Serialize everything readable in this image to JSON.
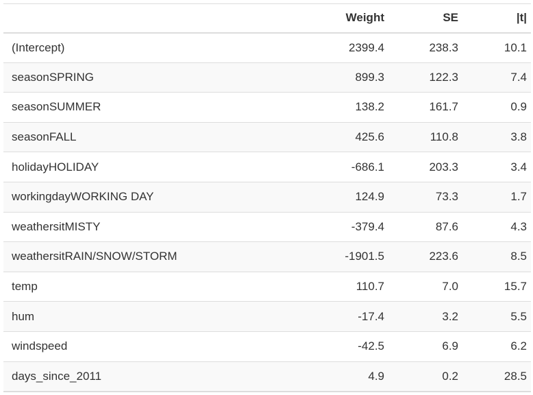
{
  "table": {
    "headers": [
      "",
      "Weight",
      "SE",
      "|t|"
    ],
    "rows": [
      {
        "term": "(Intercept)",
        "weight": "2399.4",
        "se": "238.3",
        "t": "10.1"
      },
      {
        "term": "seasonSPRING",
        "weight": "899.3",
        "se": "122.3",
        "t": "7.4"
      },
      {
        "term": "seasonSUMMER",
        "weight": "138.2",
        "se": "161.7",
        "t": "0.9"
      },
      {
        "term": "seasonFALL",
        "weight": "425.6",
        "se": "110.8",
        "t": "3.8"
      },
      {
        "term": "holidayHOLIDAY",
        "weight": "-686.1",
        "se": "203.3",
        "t": "3.4"
      },
      {
        "term": "workingdayWORKING DAY",
        "weight": "124.9",
        "se": "73.3",
        "t": "1.7"
      },
      {
        "term": "weathersitMISTY",
        "weight": "-379.4",
        "se": "87.6",
        "t": "4.3"
      },
      {
        "term": "weathersitRAIN/SNOW/STORM",
        "weight": "-1901.5",
        "se": "223.6",
        "t": "8.5"
      },
      {
        "term": "temp",
        "weight": "110.7",
        "se": "7.0",
        "t": "15.7"
      },
      {
        "term": "hum",
        "weight": "-17.4",
        "se": "3.2",
        "t": "5.5"
      },
      {
        "term": "windspeed",
        "weight": "-42.5",
        "se": "6.9",
        "t": "6.2"
      },
      {
        "term": "days_since_2011",
        "weight": "4.9",
        "se": "0.2",
        "t": "28.5"
      }
    ]
  }
}
